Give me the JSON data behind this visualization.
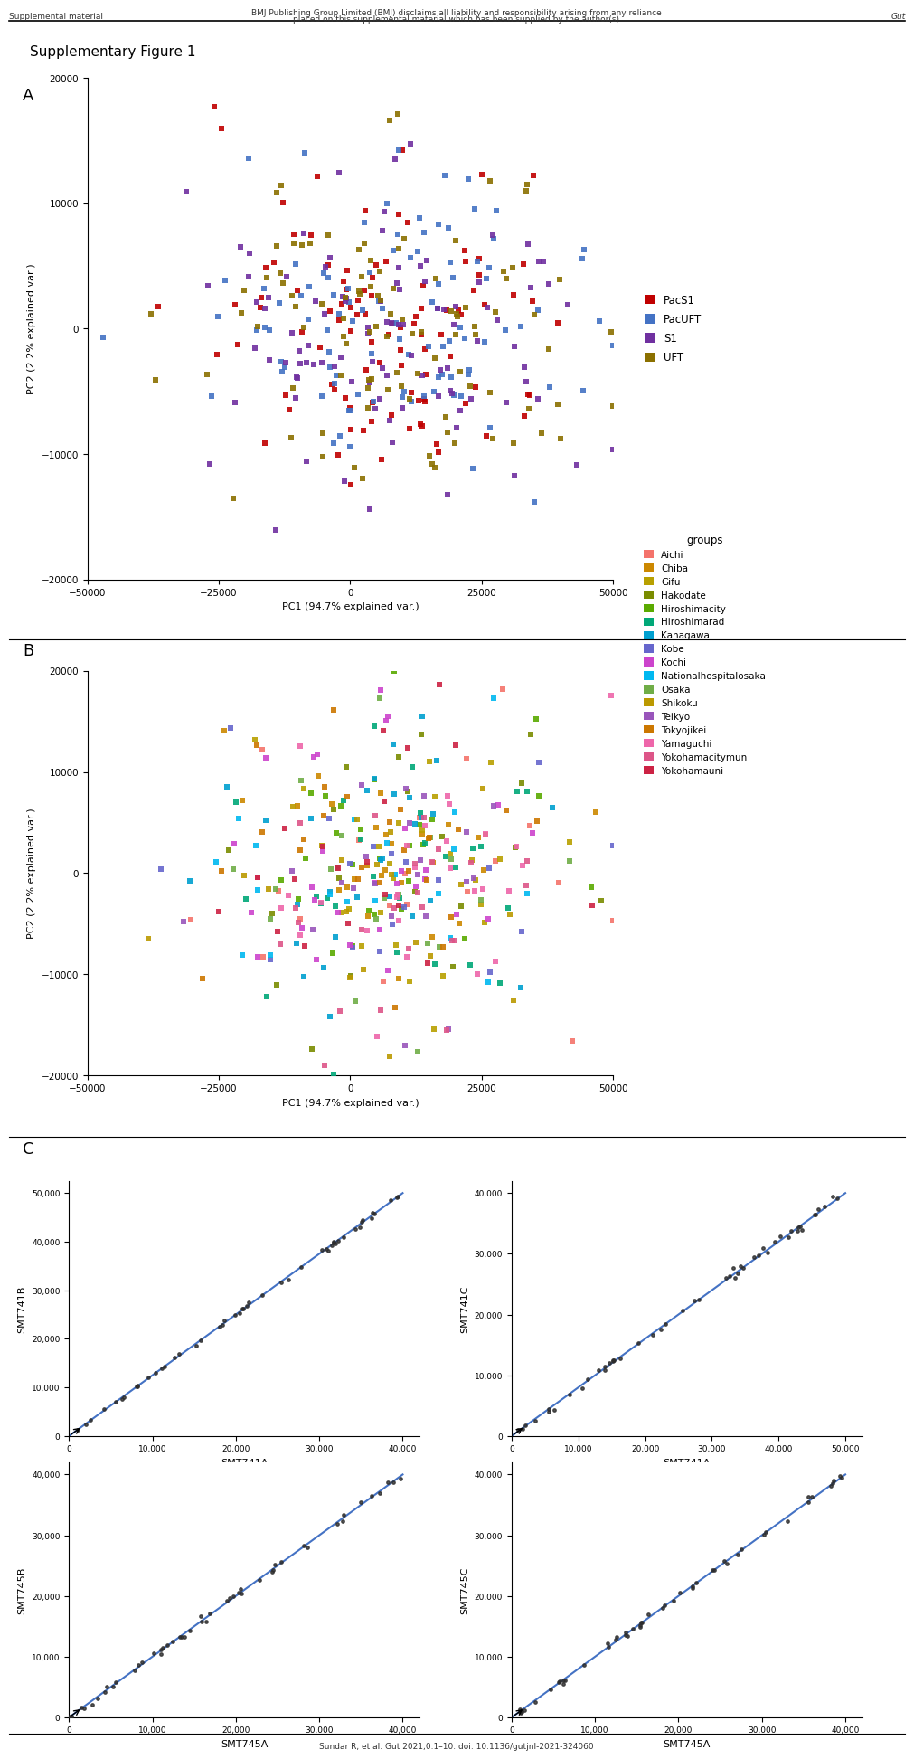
{
  "title": "Supplementary Figure 1",
  "header_line1": "BMJ Publishing Group Limited (BMJ) disclaims all liability and responsibility arising from any reliance",
  "header_line2": "placed on this supplemental material which has been supplied by the author(s)",
  "header_left": "Supplemental material",
  "header_right": "Gut",
  "footer": "Sundar R, et al. Gut 2021;0:1–10. doi: 10.1136/gutjnl-2021-324060",
  "panel_A": {
    "xlabel": "PC1 (94.7% explained var.)",
    "ylabel": "PC2 (2.2% explained var.)",
    "xlim": [
      -50000,
      50000
    ],
    "ylim": [
      -20000,
      20000
    ],
    "xticks": [
      -50000,
      -25000,
      0,
      25000,
      50000
    ],
    "yticks": [
      -20000,
      -10000,
      0,
      10000,
      20000
    ],
    "groups": [
      "PacS1",
      "PacUFT",
      "S1",
      "UFT"
    ],
    "colors": [
      "#c00000",
      "#4472c4",
      "#7030a0",
      "#8b7000"
    ]
  },
  "panel_B": {
    "xlabel": "PC1 (94.7% explained var.)",
    "ylabel": "PC2 (2.2% explained var.)",
    "xlim": [
      -50000,
      50000
    ],
    "ylim": [
      -20000,
      20000
    ],
    "xticks": [
      -50000,
      -25000,
      0,
      25000,
      50000
    ],
    "yticks": [
      -20000,
      -10000,
      0,
      10000,
      20000
    ],
    "legend_title": "groups",
    "groups": [
      "Aichi",
      "Chiba",
      "Gifu",
      "Hakodate",
      "Hiroshimacity",
      "Hiroshimarad",
      "Kanagawa",
      "Kobe",
      "Kochi",
      "Nationalhospitalosaka",
      "Osaka",
      "Shikoku",
      "Teikyo",
      "Tokyojikei",
      "Yamaguchi",
      "Yokohamacitymun",
      "Yokohamauni"
    ],
    "colors": [
      "#f4736b",
      "#cc8800",
      "#b8a000",
      "#7a8c00",
      "#5aaa00",
      "#00a878",
      "#00a0d0",
      "#6666cc",
      "#cc44cc",
      "#00b8f0",
      "#70ad47",
      "#bb9900",
      "#9955bb",
      "#cc7700",
      "#ee66aa",
      "#dd5588",
      "#cc2244"
    ]
  },
  "panel_C": {
    "plots": [
      {
        "xlabel": "SMT741A",
        "ylabel": "SMT741B",
        "xlim": [
          0,
          40000
        ],
        "ylim": [
          0,
          50000
        ],
        "xticks": [
          0,
          10000,
          20000,
          30000,
          40000
        ],
        "yticks": [
          0,
          10000,
          20000,
          30000,
          40000,
          50000
        ]
      },
      {
        "xlabel": "SMT741A",
        "ylabel": "SMT741C",
        "xlim": [
          0,
          50000
        ],
        "ylim": [
          0,
          40000
        ],
        "xticks": [
          0,
          10000,
          20000,
          30000,
          40000,
          50000
        ],
        "yticks": [
          0,
          10000,
          20000,
          30000,
          40000
        ]
      },
      {
        "xlabel": "SMT745A",
        "ylabel": "SMT745B",
        "xlim": [
          0,
          40000
        ],
        "ylim": [
          0,
          40000
        ],
        "xticks": [
          0,
          10000,
          20000,
          30000,
          40000
        ],
        "yticks": [
          0,
          10000,
          20000,
          30000,
          40000
        ]
      },
      {
        "xlabel": "SMT745A",
        "ylabel": "SMT745C",
        "xlim": [
          0,
          40000
        ],
        "ylim": [
          0,
          40000
        ],
        "xticks": [
          0,
          10000,
          20000,
          30000,
          40000
        ],
        "yticks": [
          0,
          10000,
          20000,
          30000,
          40000
        ]
      }
    ]
  },
  "bg_color": "#ffffff",
  "seed": 42
}
